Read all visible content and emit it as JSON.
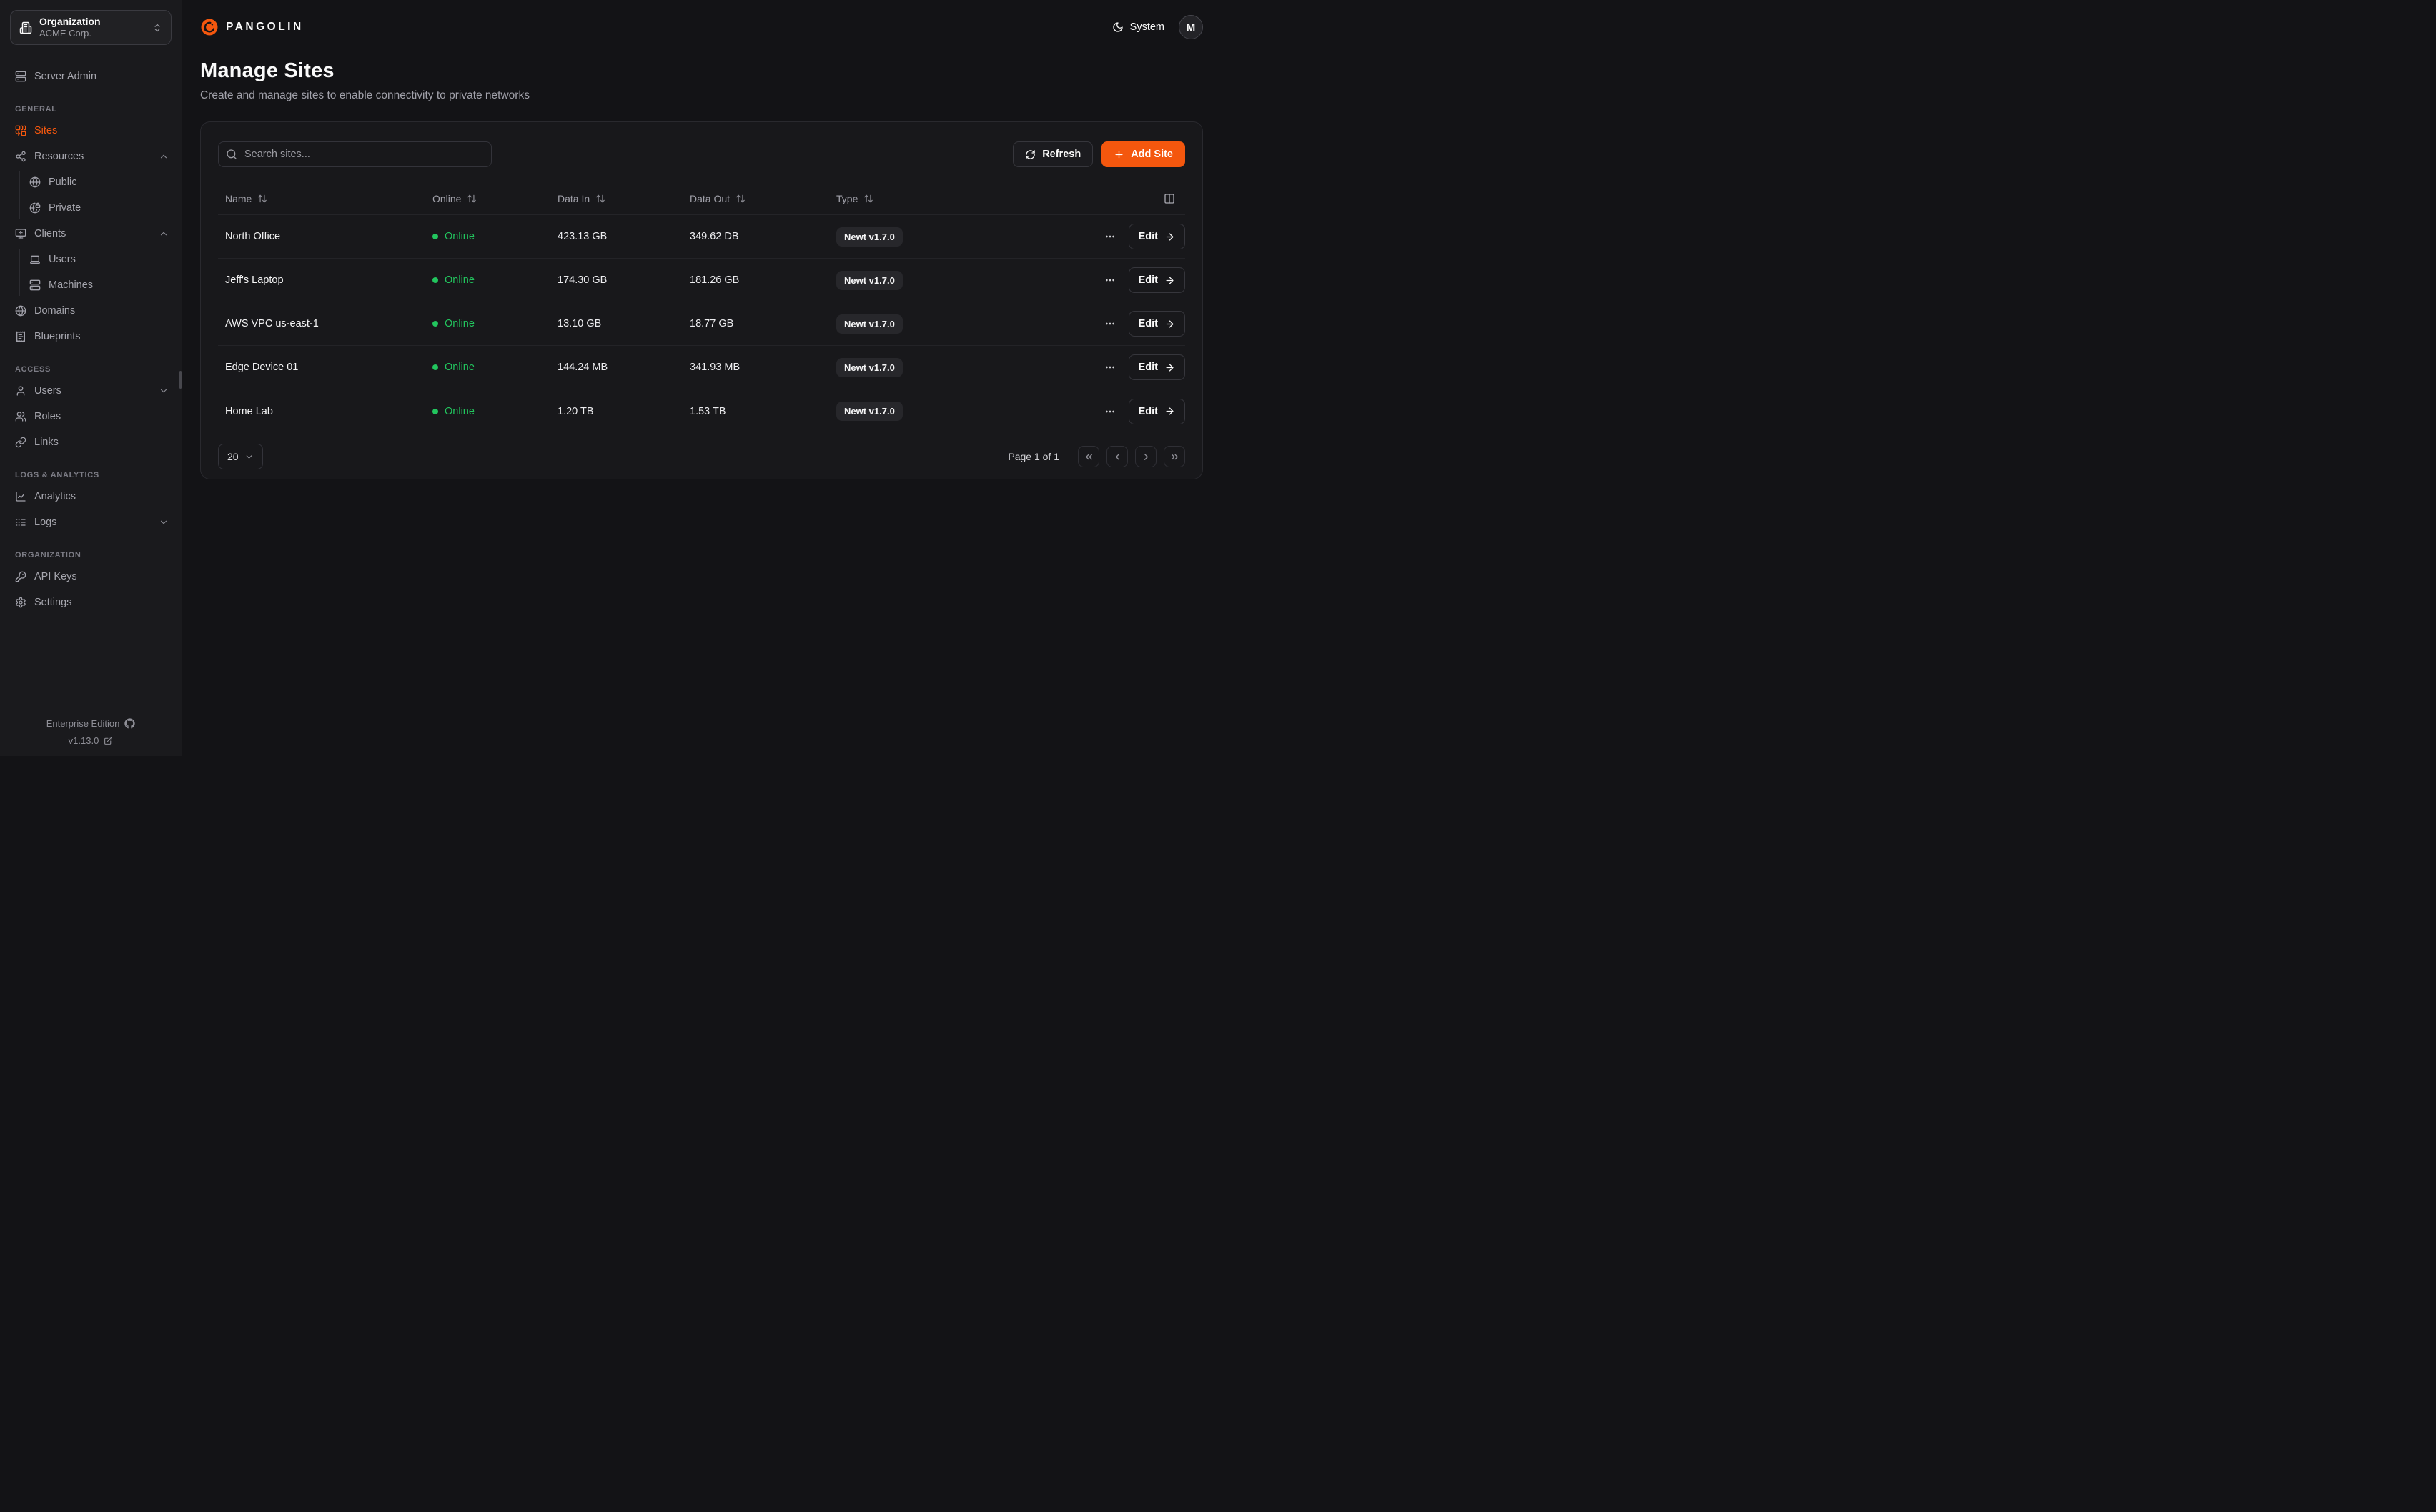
{
  "org_selector": {
    "label": "Organization",
    "value": "ACME Corp."
  },
  "topbar": {
    "brand": "PANGOLIN",
    "theme_label": "System",
    "avatar_initial": "M"
  },
  "sidebar": {
    "server_admin_label": "Server Admin",
    "sections": [
      {
        "label": "GENERAL"
      },
      {
        "label": "ACCESS"
      },
      {
        "label": "LOGS & ANALYTICS"
      },
      {
        "label": "ORGANIZATION"
      }
    ],
    "items": {
      "sites": "Sites",
      "resources": "Resources",
      "public": "Public",
      "private": "Private",
      "clients": "Clients",
      "client_users": "Users",
      "machines": "Machines",
      "domains": "Domains",
      "blueprints": "Blueprints",
      "users": "Users",
      "roles": "Roles",
      "links": "Links",
      "analytics": "Analytics",
      "logs": "Logs",
      "api_keys": "API Keys",
      "settings": "Settings"
    },
    "footer": {
      "edition": "Enterprise Edition",
      "version": "v1.13.0"
    }
  },
  "page": {
    "title": "Manage Sites",
    "subtitle": "Create and manage sites to enable connectivity to private networks"
  },
  "toolbar": {
    "search_placeholder": "Search sites...",
    "refresh_label": "Refresh",
    "add_site_label": "Add Site"
  },
  "table": {
    "columns": [
      "Name",
      "Online",
      "Data In",
      "Data Out",
      "Type"
    ],
    "edit_label": "Edit",
    "rows": [
      {
        "name": "North Office",
        "status": "Online",
        "data_in": "423.13 GB",
        "data_out": "349.62 DB",
        "type": "Newt v1.7.0"
      },
      {
        "name": "Jeff's Laptop",
        "status": "Online",
        "data_in": "174.30 GB",
        "data_out": "181.26 GB",
        "type": "Newt v1.7.0"
      },
      {
        "name": "AWS VPC us-east-1",
        "status": "Online",
        "data_in": "13.10 GB",
        "data_out": "18.77 GB",
        "type": "Newt v1.7.0"
      },
      {
        "name": "Edge Device 01",
        "status": "Online",
        "data_in": "144.24 MB",
        "data_out": "341.93 MB",
        "type": "Newt v1.7.0"
      },
      {
        "name": "Home Lab",
        "status": "Online",
        "data_in": "1.20 TB",
        "data_out": "1.53 TB",
        "type": "Newt v1.7.0"
      }
    ]
  },
  "pagination": {
    "page_size": "20",
    "page_label": "Page 1 of 1"
  },
  "colors": {
    "accent": "#F4570E",
    "online_green": "#22C55E",
    "sidebar_bg": "#1A1A1D",
    "card_bg": "#18181B"
  }
}
